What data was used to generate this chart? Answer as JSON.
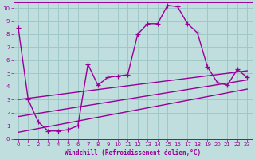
{
  "xlabel": "Windchill (Refroidissement éolien,°C)",
  "bg_color": "#c0dede",
  "grid_color": "#a0c8c8",
  "line_color": "#990099",
  "spine_color": "#990099",
  "xlim": [
    -0.5,
    23.5
  ],
  "ylim": [
    0,
    10.4
  ],
  "xticks": [
    0,
    1,
    2,
    3,
    4,
    5,
    6,
    7,
    8,
    9,
    10,
    11,
    12,
    13,
    14,
    15,
    16,
    17,
    18,
    19,
    20,
    21,
    22,
    23
  ],
  "yticks": [
    0,
    1,
    2,
    3,
    4,
    5,
    6,
    7,
    8,
    9,
    10
  ],
  "main_x": [
    0,
    1,
    2,
    3,
    4,
    5,
    6,
    7,
    8,
    9,
    10,
    11,
    12,
    13,
    14,
    15,
    16,
    17,
    18,
    19,
    20,
    21,
    22,
    23
  ],
  "main_y": [
    8.5,
    3.0,
    1.3,
    0.6,
    0.6,
    0.7,
    1.0,
    5.7,
    4.1,
    4.7,
    4.8,
    4.9,
    8.0,
    8.8,
    8.8,
    10.2,
    10.1,
    8.8,
    8.1,
    5.5,
    4.3,
    4.1,
    5.3,
    4.7
  ],
  "line1_x": [
    0,
    23
  ],
  "line1_y": [
    3.0,
    5.2
  ],
  "line2_x": [
    0,
    23
  ],
  "line2_y": [
    1.7,
    4.5
  ],
  "line3_x": [
    0,
    23
  ],
  "line3_y": [
    0.5,
    3.8
  ],
  "tick_fontsize": 5,
  "xlabel_fontsize": 5.5,
  "line_width": 1.0
}
